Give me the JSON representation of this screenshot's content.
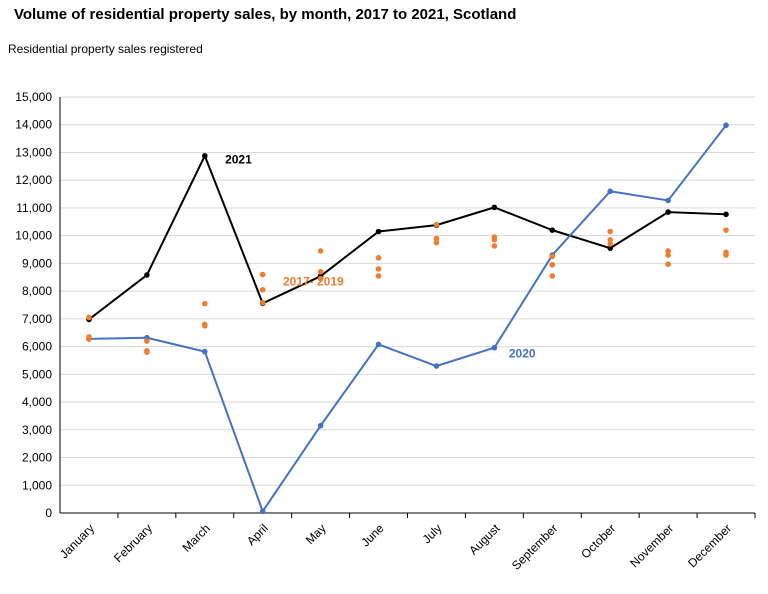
{
  "chart_data": {
    "type": "line",
    "title": "Volume of residential property sales, by month, 2017 to 2021, Scotland",
    "ylabel": "Residential property sales registered",
    "xlabel": "",
    "ylim": [
      0,
      15000
    ],
    "yticks": [
      "0",
      "1,000",
      "2,000",
      "3,000",
      "4,000",
      "5,000",
      "6,000",
      "7,000",
      "8,000",
      "9,000",
      "10,000",
      "11,000",
      "12,000",
      "13,000",
      "14,000",
      "15,000"
    ],
    "grid": true,
    "legend": "none",
    "categories": [
      "January",
      "February",
      "March",
      "April",
      "May",
      "June",
      "July",
      "August",
      "September",
      "October",
      "November",
      "December"
    ],
    "series": [
      {
        "name": "2021",
        "color": "#000000",
        "style": "line-markers",
        "values": [
          6980,
          8580,
          12880,
          7560,
          8540,
          10150,
          10380,
          11020,
          10200,
          9550,
          10850,
          10770
        ]
      },
      {
        "name": "2020",
        "color": "#4472c4",
        "style": "line-markers",
        "values": [
          6280,
          6320,
          5820,
          60,
          3150,
          6080,
          5300,
          5960,
          9300,
          11600,
          11270,
          13980
        ]
      },
      {
        "name": "2017- 2019",
        "color": "#ed7d31",
        "style": "points",
        "values": [
          [
            7050,
            6350,
            6270
          ],
          [
            6200,
            5850,
            5800
          ],
          [
            7550,
            6800,
            6750
          ],
          [
            8600,
            8050,
            7580
          ],
          [
            9450,
            8700,
            8450
          ],
          [
            9200,
            8800,
            8550
          ],
          [
            10400,
            9900,
            9750
          ],
          [
            9950,
            9850,
            9630
          ],
          [
            9250,
            8950,
            8550
          ],
          [
            10150,
            9850,
            9700
          ],
          [
            9450,
            9300,
            8970
          ],
          [
            10200,
            9400,
            9300
          ]
        ]
      }
    ],
    "annotations": [
      {
        "text": "2021",
        "series": "2021"
      },
      {
        "text": "2017- 2019",
        "series": "2017- 2019"
      },
      {
        "text": "2020",
        "series": "2020"
      }
    ]
  }
}
